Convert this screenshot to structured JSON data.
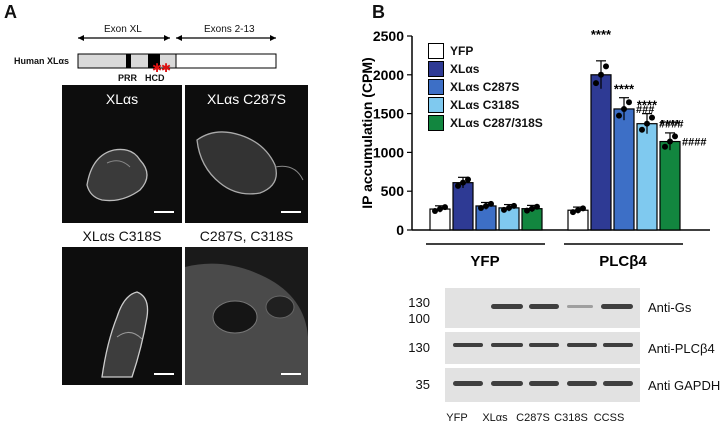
{
  "panelA": {
    "letter": "A",
    "exon_xl": "Exon XL",
    "exons_2_13": "Exons 2-13",
    "gene_label": "Human XLαs",
    "prr": "PRR",
    "hcd": "HCD",
    "images": [
      {
        "label": "XLαs"
      },
      {
        "label": "XLαs C287S"
      },
      {
        "label": "XLαs C318S"
      },
      {
        "label": "C287S, C318S"
      }
    ]
  },
  "panelB": {
    "letter": "B",
    "legend": [
      "YFP",
      "XLαs",
      "XLαs C287S",
      "XLαs C318S",
      "XLαs C287/318S"
    ],
    "group_labels": [
      "YFP",
      "PLCβ4"
    ],
    "significance": {
      "stars": [
        "****",
        "****",
        "****",
        "****"
      ],
      "hash": [
        "###",
        "####",
        "####"
      ]
    },
    "western": {
      "rows": [
        {
          "antibody": "Anti-Gs",
          "markers": [
            "130",
            "100"
          ]
        },
        {
          "antibody": "Anti-PLCβ4",
          "markers": [
            "130"
          ]
        },
        {
          "antibody": "Anti GAPDH",
          "markers": [
            "35"
          ]
        }
      ],
      "lanes": [
        "YFP",
        "XLαs",
        "C287S",
        "C318S",
        "CCSS"
      ]
    }
  },
  "chart_data": {
    "type": "bar",
    "ylabel": "IP accumulation (CPM)",
    "ylim": [
      0,
      2500
    ],
    "yticks": [
      0,
      500,
      1000,
      1500,
      2000,
      2500
    ],
    "categories": [
      "YFP",
      "PLCβ4"
    ],
    "series": [
      {
        "name": "YFP",
        "color": "#ffffff",
        "values": [
          270,
          255
        ]
      },
      {
        "name": "XLαs",
        "color": "#2e3a94",
        "values": [
          610,
          2000
        ]
      },
      {
        "name": "XLαs C287S",
        "color": "#3d6fc6",
        "values": [
          310,
          1560
        ]
      },
      {
        "name": "XLαs C318S",
        "color": "#7fc9ef",
        "values": [
          285,
          1370
        ]
      },
      {
        "name": "XLαs C287/318S",
        "color": "#12863f",
        "values": [
          275,
          1140
        ]
      }
    ]
  }
}
